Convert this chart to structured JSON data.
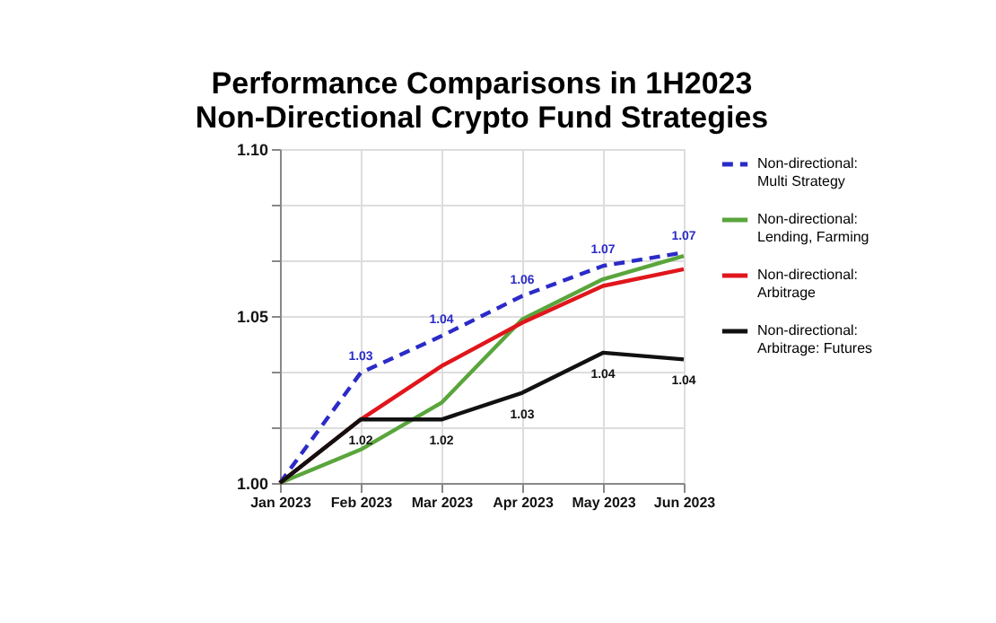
{
  "chart_data": {
    "type": "line",
    "title": "Performance Comparisons in 1H2023\nNon-Directional Crypto Fund Strategies",
    "categories": [
      "Jan 2023",
      "Feb 2023",
      "Mar 2023",
      "Apr 2023",
      "May 2023",
      "Jun 2023"
    ],
    "series": [
      {
        "name": "Non-directional: Multi Strategy",
        "color": "#2b2bc8",
        "line_style": "dashed",
        "values": [
          1.0,
          1.033,
          1.044,
          1.056,
          1.065,
          1.069
        ],
        "value_labels": [
          null,
          "1.03",
          "1.04",
          "1.06",
          "1.07",
          "1.07"
        ]
      },
      {
        "name": "Non-directional: Lending, Farming",
        "color": "#5aa53c",
        "line_style": "solid",
        "values": [
          1.0,
          1.01,
          1.024,
          1.049,
          1.061,
          1.068
        ]
      },
      {
        "name": "Non-directional: Arbitrage",
        "color": "#e0161c",
        "line_style": "solid",
        "values": [
          1.0,
          1.019,
          1.035,
          1.048,
          1.059,
          1.064
        ]
      },
      {
        "name": "Non-directional: Arbitrage: Futures",
        "color": "#111111",
        "line_style": "solid",
        "values": [
          1.0,
          1.019,
          1.019,
          1.027,
          1.039,
          1.037
        ],
        "value_labels": [
          null,
          "1.02",
          "1.02",
          "1.03",
          "1.04",
          "1.04"
        ]
      }
    ],
    "ylim": [
      1.0,
      1.1
    ],
    "yticks": [
      {
        "value": 1.0,
        "label": "1.00"
      },
      {
        "value": 1.0167,
        "label": null
      },
      {
        "value": 1.0333,
        "label": null
      },
      1.05,
      {
        "value": 1.0667,
        "label": null
      },
      {
        "value": 1.0833,
        "label": null
      },
      {
        "value": 1.1,
        "label": "1.10"
      }
    ],
    "grid": true,
    "legend": "right",
    "marker": "none"
  }
}
